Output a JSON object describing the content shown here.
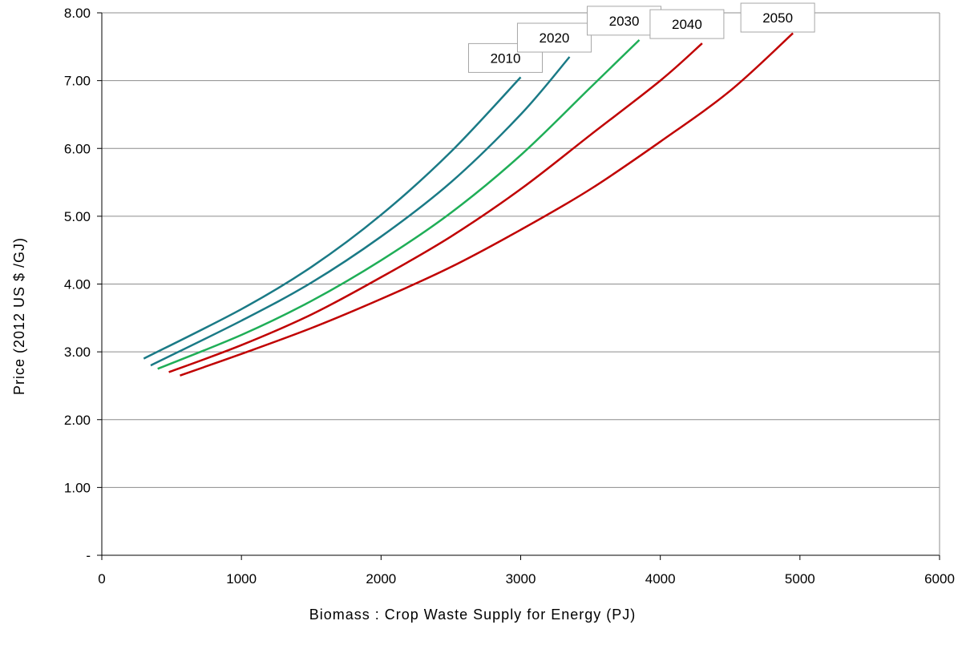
{
  "chart_data": {
    "type": "line",
    "xlabel": "Biomass : Crop Waste Supply for Energy (PJ)",
    "ylabel": "Price (2012 US $ /GJ)",
    "xlim": [
      0,
      6000
    ],
    "ylim": [
      0,
      8
    ],
    "x_ticks": [
      "0",
      "1000",
      "2000",
      "3000",
      "4000",
      "5000",
      "6000"
    ],
    "y_ticks": [
      "-",
      "1.00",
      "2.00",
      "3.00",
      "4.00",
      "5.00",
      "6.00",
      "7.00",
      "8.00"
    ],
    "grid": "horizontal",
    "series": [
      {
        "name": "2010",
        "color": "#1a7a86",
        "points": [
          [
            300,
            2.9
          ],
          [
            1000,
            3.63
          ],
          [
            1500,
            4.25
          ],
          [
            2000,
            5.02
          ],
          [
            2500,
            5.95
          ],
          [
            3000,
            7.05
          ]
        ]
      },
      {
        "name": "2020",
        "color": "#1a7a86",
        "points": [
          [
            350,
            2.8
          ],
          [
            1000,
            3.46
          ],
          [
            1500,
            4.02
          ],
          [
            2000,
            4.7
          ],
          [
            2500,
            5.5
          ],
          [
            3000,
            6.5
          ],
          [
            3350,
            7.35
          ]
        ]
      },
      {
        "name": "2030",
        "color": "#1fae57",
        "points": [
          [
            400,
            2.75
          ],
          [
            1000,
            3.25
          ],
          [
            1500,
            3.75
          ],
          [
            2000,
            4.35
          ],
          [
            2500,
            5.05
          ],
          [
            3000,
            5.9
          ],
          [
            3500,
            6.9
          ],
          [
            3850,
            7.6
          ]
        ]
      },
      {
        "name": "2040",
        "color": "#c00000",
        "points": [
          [
            480,
            2.7
          ],
          [
            1000,
            3.1
          ],
          [
            1500,
            3.55
          ],
          [
            2000,
            4.1
          ],
          [
            2500,
            4.7
          ],
          [
            3000,
            5.4
          ],
          [
            3500,
            6.2
          ],
          [
            4000,
            7.0
          ],
          [
            4300,
            7.55
          ]
        ]
      },
      {
        "name": "2050",
        "color": "#c00000",
        "points": [
          [
            560,
            2.65
          ],
          [
            1000,
            2.97
          ],
          [
            1500,
            3.35
          ],
          [
            2000,
            3.78
          ],
          [
            2500,
            4.25
          ],
          [
            3000,
            4.8
          ],
          [
            3500,
            5.4
          ],
          [
            4000,
            6.1
          ],
          [
            4500,
            6.85
          ],
          [
            4950,
            7.7
          ]
        ]
      }
    ]
  }
}
